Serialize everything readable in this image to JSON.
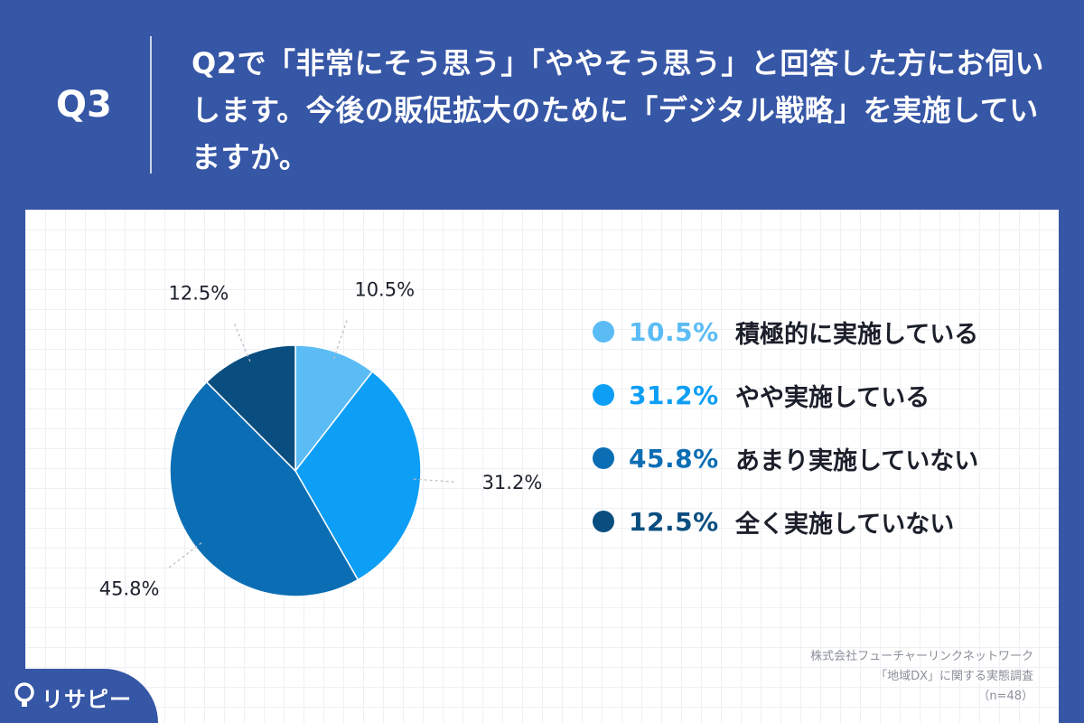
{
  "header": {
    "q_label": "Q3",
    "question": "Q2で「非常にそう思う」「ややそう思う」と回答した方にお伺いします。今後の販促拡大のために「デジタル戦略」を実施していますか。"
  },
  "chart_data": {
    "type": "pie",
    "categories": [
      "積極的に実施している",
      "やや実施している",
      "あまり実施していない",
      "全く実施していない"
    ],
    "values": [
      10.5,
      31.2,
      45.8,
      12.5
    ],
    "value_labels": [
      "10.5%",
      "31.2%",
      "45.8%",
      "12.5%"
    ],
    "colors": [
      "#5bbcf5",
      "#0d9ef5",
      "#0b6eb4",
      "#0a4e80"
    ],
    "start_angle": "12 o'clock",
    "direction": "clockwise",
    "legend_placement": "right"
  },
  "source": {
    "line1": "株式会社フューチャーリンクネットワーク",
    "line2": "「地域DX」に関する実態調査",
    "line3": "（n=48）"
  },
  "logo": {
    "text": "リサピー",
    "colors": {
      "badge": "#3656a6"
    }
  }
}
